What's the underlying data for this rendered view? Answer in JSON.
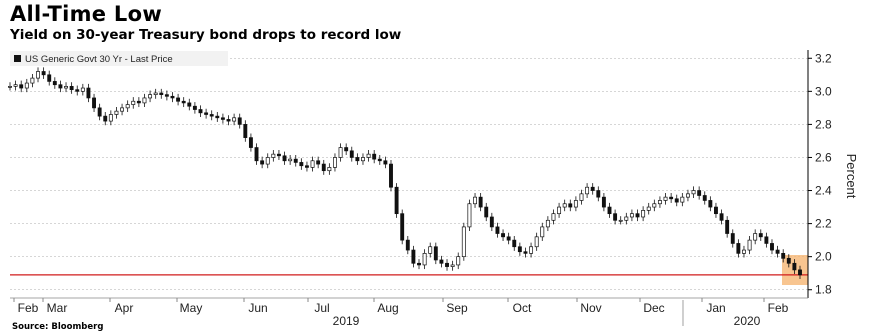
{
  "title": "All-Time Low",
  "subtitle": "Yield on 30-year Treasury bond drops to record low",
  "source": "Source: Bloomberg",
  "chart_data": {
    "type": "candlestick",
    "series_name": "US Generic Govt 30 Yr - Last Price",
    "ylabel": "Percent",
    "ylim": [
      1.75,
      3.25
    ],
    "yticks": [
      3.2,
      3.0,
      2.8,
      2.6,
      2.4,
      2.2,
      2.0,
      1.8
    ],
    "x_month_labels": [
      "Feb",
      "Mar",
      "Apr",
      "May",
      "Jun",
      "Jul",
      "Aug",
      "Sep",
      "Oct",
      "Nov",
      "Dec",
      "Jan",
      "Feb"
    ],
    "year_labels": [
      "2019",
      "2020"
    ],
    "reference_line": {
      "value": 1.89,
      "color": "#d11c1c"
    },
    "highlight_color": "#f6b26b",
    "series_color": "#111111",
    "prices": [
      3.03,
      3.04,
      3.02,
      3.05,
      3.08,
      3.12,
      3.1,
      3.06,
      3.04,
      3.02,
      3.03,
      3.01,
      3.0,
      3.02,
      2.96,
      2.9,
      2.85,
      2.82,
      2.86,
      2.88,
      2.9,
      2.92,
      2.94,
      2.93,
      2.96,
      2.98,
      2.99,
      2.98,
      2.97,
      2.96,
      2.94,
      2.93,
      2.91,
      2.89,
      2.87,
      2.86,
      2.85,
      2.84,
      2.83,
      2.82,
      2.84,
      2.8,
      2.72,
      2.66,
      2.58,
      2.56,
      2.6,
      2.62,
      2.61,
      2.58,
      2.59,
      2.57,
      2.55,
      2.54,
      2.58,
      2.56,
      2.52,
      2.54,
      2.6,
      2.66,
      2.64,
      2.6,
      2.58,
      2.6,
      2.62,
      2.59,
      2.58,
      2.56,
      2.42,
      2.26,
      2.1,
      2.04,
      1.96,
      1.95,
      2.02,
      2.06,
      1.98,
      1.96,
      1.94,
      1.95,
      2.0,
      2.18,
      2.32,
      2.36,
      2.3,
      2.24,
      2.18,
      2.14,
      2.12,
      2.1,
      2.06,
      2.03,
      2.02,
      2.06,
      2.12,
      2.18,
      2.22,
      2.26,
      2.3,
      2.32,
      2.3,
      2.34,
      2.38,
      2.42,
      2.4,
      2.36,
      2.3,
      2.26,
      2.22,
      2.22,
      2.24,
      2.26,
      2.24,
      2.28,
      2.3,
      2.32,
      2.34,
      2.36,
      2.35,
      2.33,
      2.36,
      2.38,
      2.4,
      2.37,
      2.34,
      2.3,
      2.26,
      2.22,
      2.14,
      2.08,
      2.02,
      2.04,
      2.1,
      2.14,
      2.12,
      2.08,
      2.04,
      2.02,
      1.99,
      1.96,
      1.92,
      1.89
    ]
  }
}
